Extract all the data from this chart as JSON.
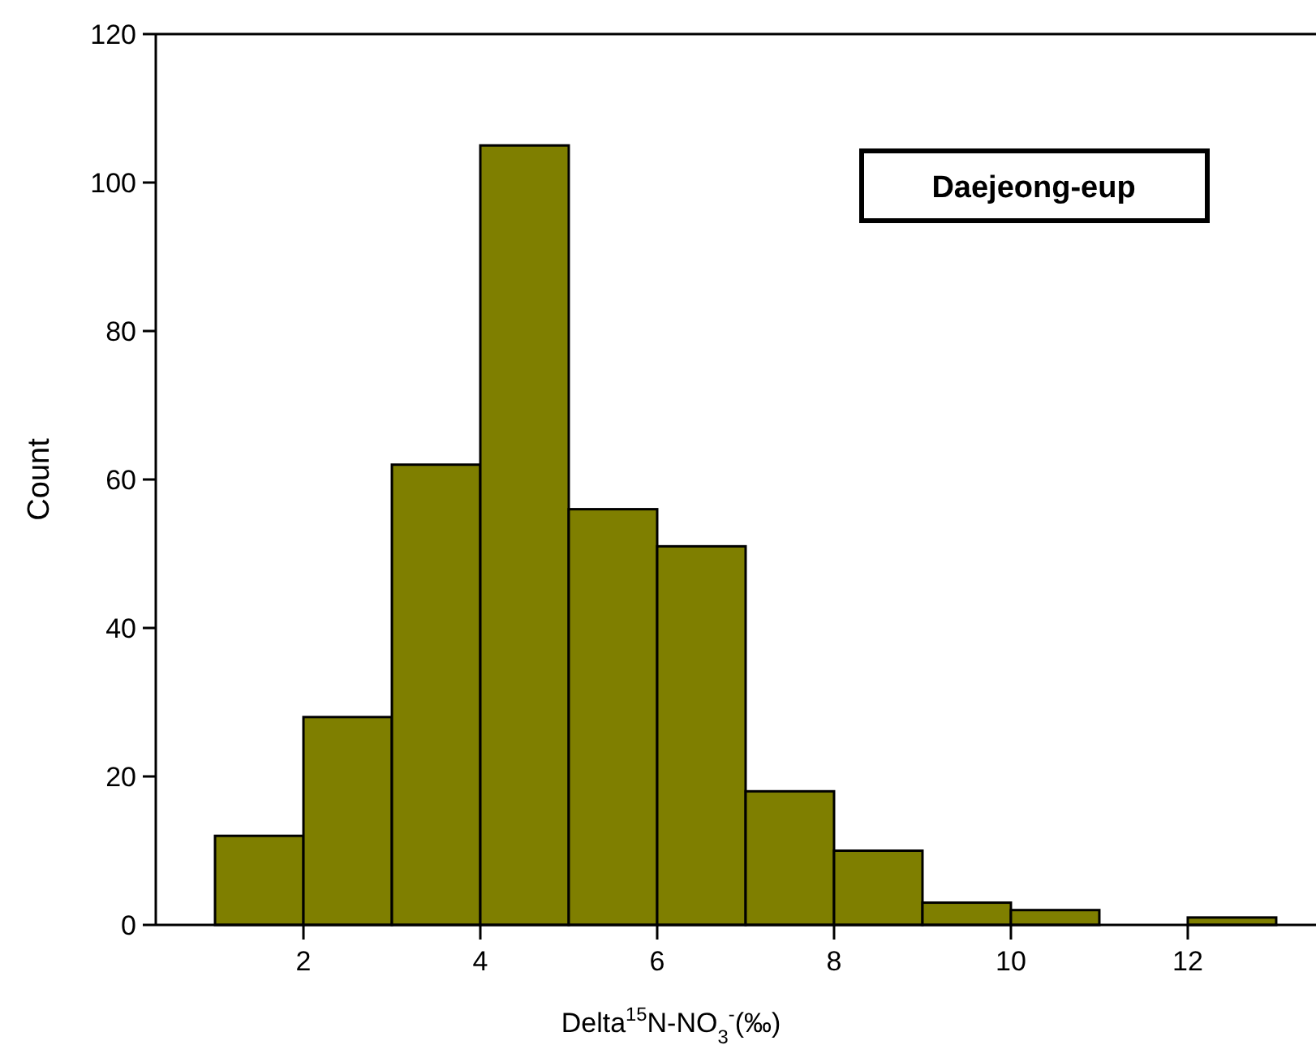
{
  "chart_data": {
    "type": "histogram",
    "xlabel": "Delta$^{15}$N-NO$_{3}$$^{-}$(‰)",
    "ylabel": "Count",
    "annotations": [
      "Daejeong-eup"
    ],
    "bins": [
      1,
      2,
      3,
      4,
      5,
      6,
      7,
      8,
      9,
      10,
      11,
      12,
      13
    ],
    "values": [
      12,
      28,
      62,
      105,
      56,
      51,
      18,
      10,
      3,
      2,
      0,
      1
    ],
    "color": "#7f7f00",
    "xlim": [
      0.33,
      13.45
    ],
    "ylim": [
      0,
      120
    ],
    "xticks": [
      2,
      4,
      6,
      8,
      10,
      12
    ],
    "yticks": [
      0,
      20,
      40,
      60,
      80,
      100,
      120
    ],
    "grid": false
  }
}
